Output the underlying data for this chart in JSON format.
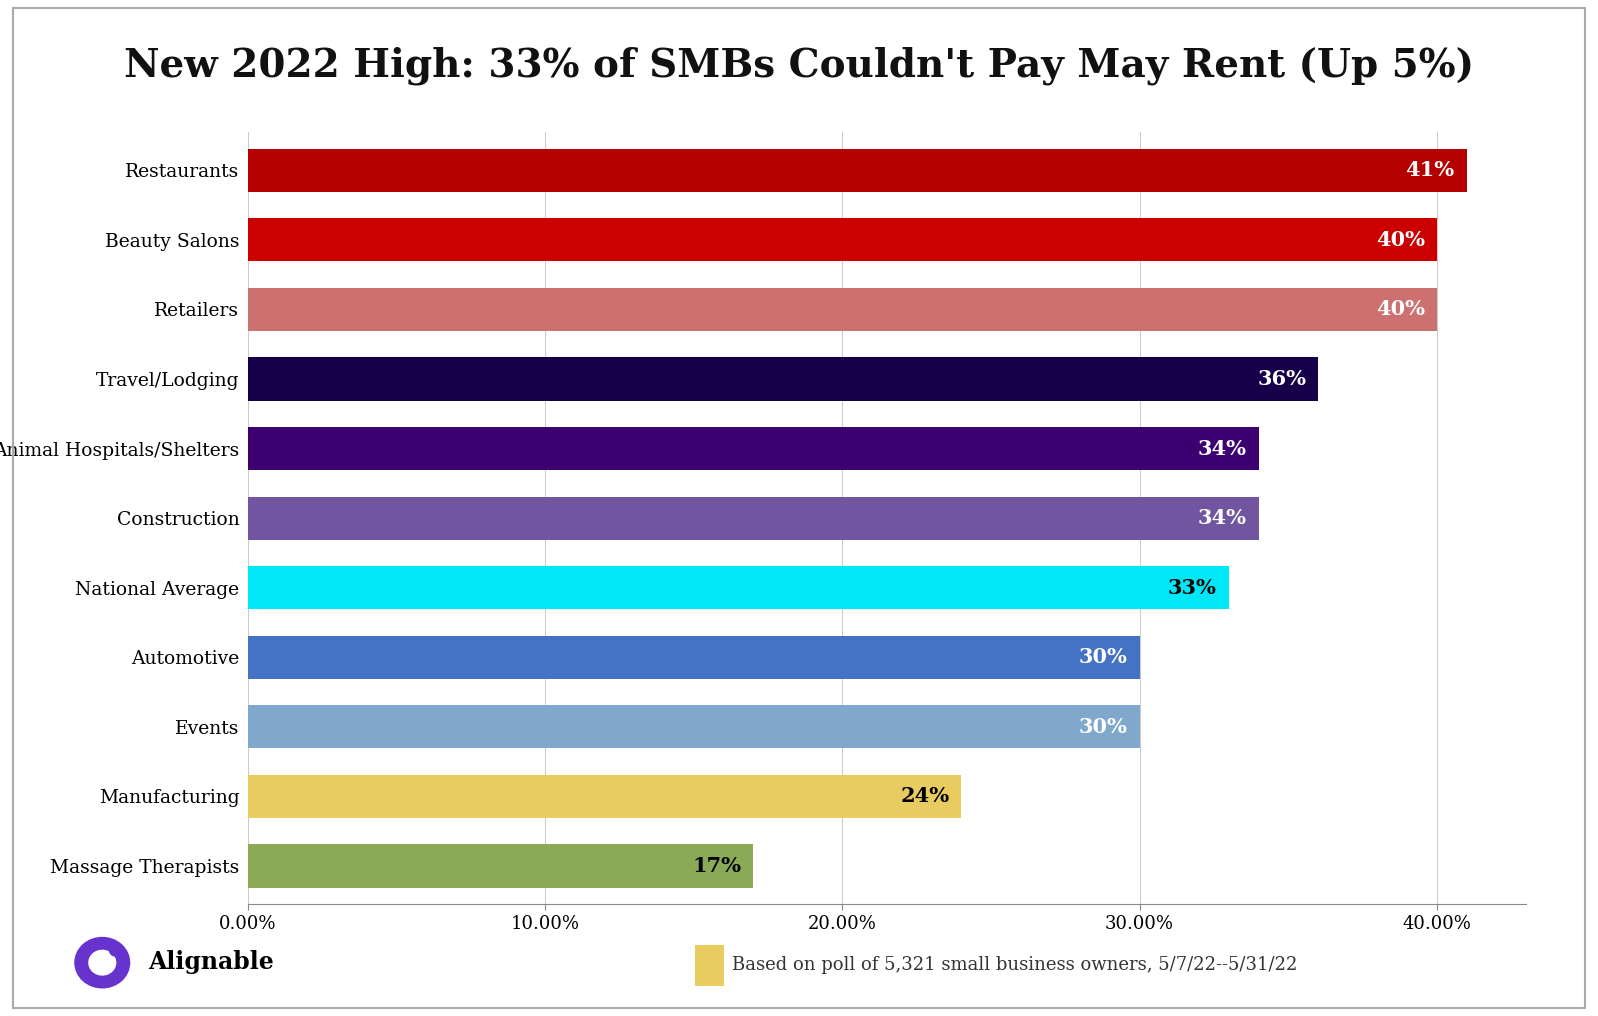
{
  "title": "New 2022 High: 33% of SMBs Couldn't Pay May Rent (Up 5%)",
  "categories": [
    "Restaurants",
    "Beauty Salons",
    "Retailers",
    "Travel/Lodging",
    "Animal Hospitals/Shelters",
    "Construction",
    "National Average",
    "Automotive",
    "Events",
    "Manufacturing",
    "Massage Therapists"
  ],
  "values": [
    41,
    40,
    40,
    36,
    34,
    34,
    33,
    30,
    30,
    24,
    17
  ],
  "bar_colors": [
    "#b50000",
    "#cc0000",
    "#cc7070",
    "#16004a",
    "#3d0070",
    "#7155a0",
    "#00e8f8",
    "#4472c4",
    "#7fa8cc",
    "#e8cc60",
    "#8aaa58"
  ],
  "label_colors": [
    "#ffffff",
    "#ffffff",
    "#ffffff",
    "#ffffff",
    "#ffffff",
    "#ffffff",
    "#000000",
    "#ffffff",
    "#ffffff",
    "#000000",
    "#000000"
  ],
  "xlim": [
    0,
    43
  ],
  "xticks": [
    0,
    10,
    20,
    30,
    40
  ],
  "xticklabels": [
    "0.00%",
    "10.00%",
    "20.00%",
    "30.00%",
    "40.00%"
  ],
  "background_color": "#ffffff",
  "title_fontsize": 28,
  "bar_height": 0.62,
  "footnote": "Based on poll of 5,321 small business owners, 5/7/22–5/31/22",
  "footnote2": "Based on poll of 5,321 small business owners, 5/7/22--5/31/22",
  "legend_color": "#e8cc60",
  "alignable_logo_color": "#6633cc"
}
